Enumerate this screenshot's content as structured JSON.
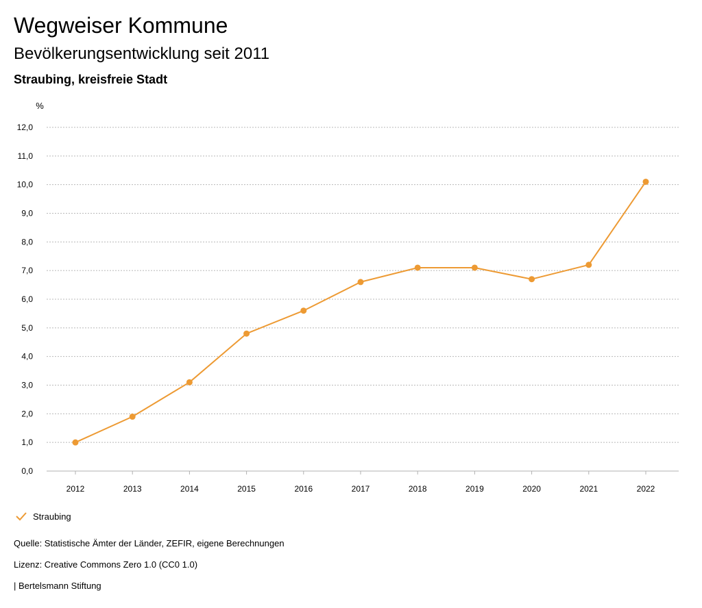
{
  "header": {
    "title": "Wegweiser Kommune",
    "subtitle": "Bevölkerungsentwicklung seit 2011",
    "region": "Straubing, kreisfreie Stadt"
  },
  "colors": {
    "series": "#ed9a33",
    "grid": "#b8b8b8",
    "axis": "#b0b0b0",
    "text": "#000000"
  },
  "chart_data": {
    "type": "line",
    "ylabel": "%",
    "ylim": [
      0,
      12
    ],
    "y_ticks": [
      "0,0",
      "1,0",
      "2,0",
      "3,0",
      "4,0",
      "5,0",
      "6,0",
      "7,0",
      "8,0",
      "9,0",
      "10,0",
      "11,0",
      "12,0"
    ],
    "categories": [
      "2012",
      "2013",
      "2014",
      "2015",
      "2016",
      "2017",
      "2018",
      "2019",
      "2020",
      "2021",
      "2022"
    ],
    "grid": true,
    "legend_position": "bottom-left",
    "series": [
      {
        "name": "Straubing",
        "values": [
          1.0,
          1.9,
          3.1,
          4.8,
          5.6,
          6.6,
          7.1,
          7.1,
          6.7,
          7.2,
          10.1
        ]
      }
    ]
  },
  "footer": {
    "source": "Quelle: Statistische Ämter der Länder, ZEFIR, eigene Berechnungen",
    "license": "Lizenz: Creative Commons Zero 1.0 (CC0 1.0)",
    "publisher": "| Bertelsmann Stiftung"
  }
}
